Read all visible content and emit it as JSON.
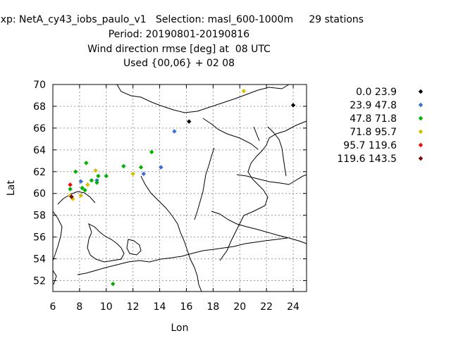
{
  "chart_data": {
    "type": "scatter",
    "title_lines": [
      "Exp: NetA_cy43_iobs_paulo_v1   Selection: masl_600-1000m     29 stations",
      "Period: 20190801-20190816",
      "Wind direction rmse [deg] at  08 UTC",
      "Used {00,06} + 02 08"
    ],
    "xlabel": "Lon",
    "ylabel": "Lat",
    "xlim": [
      6,
      25
    ],
    "ylim": [
      51,
      70
    ],
    "xticks": [
      6,
      8,
      10,
      12,
      14,
      16,
      18,
      20,
      22,
      24
    ],
    "yticks": [
      52,
      54,
      56,
      58,
      60,
      62,
      64,
      66,
      68,
      70
    ],
    "grid": true,
    "legend_position": "right",
    "series": [
      {
        "name": "0.0 23.9",
        "color": "#000000",
        "points": [
          [
            16.2,
            66.6
          ],
          [
            24.0,
            68.1
          ]
        ]
      },
      {
        "name": "23.9 47.8",
        "color": "#3b6fd4",
        "points": [
          [
            15.1,
            65.7
          ],
          [
            14.1,
            62.4
          ],
          [
            12.8,
            61.8
          ],
          [
            8.1,
            61.1
          ],
          [
            9.3,
            61.2
          ]
        ]
      },
      {
        "name": "47.8 71.8",
        "color": "#00b000",
        "points": [
          [
            13.4,
            63.8
          ],
          [
            11.3,
            62.5
          ],
          [
            12.6,
            62.4
          ],
          [
            8.5,
            62.8
          ],
          [
            7.7,
            62.0
          ],
          [
            9.4,
            61.6
          ],
          [
            10.0,
            61.6
          ],
          [
            8.9,
            61.2
          ],
          [
            9.3,
            61.0
          ],
          [
            8.2,
            60.5
          ],
          [
            8.4,
            60.3
          ],
          [
            7.3,
            60.4
          ],
          [
            10.5,
            51.7
          ]
        ]
      },
      {
        "name": "71.8 95.7",
        "color": "#d4c000",
        "points": [
          [
            20.3,
            69.4
          ],
          [
            12.0,
            61.8
          ],
          [
            9.2,
            62.1
          ],
          [
            8.6,
            60.8
          ],
          [
            8.1,
            59.8
          ],
          [
            7.3,
            59.8
          ],
          [
            7.5,
            59.5
          ]
        ]
      },
      {
        "name": "95.7 119.6",
        "color": "#ff0000",
        "points": [
          [
            7.3,
            60.8
          ]
        ]
      },
      {
        "name": "119.6 143.5",
        "color": "#800000",
        "points": [
          [
            7.4,
            59.7
          ]
        ]
      }
    ]
  }
}
